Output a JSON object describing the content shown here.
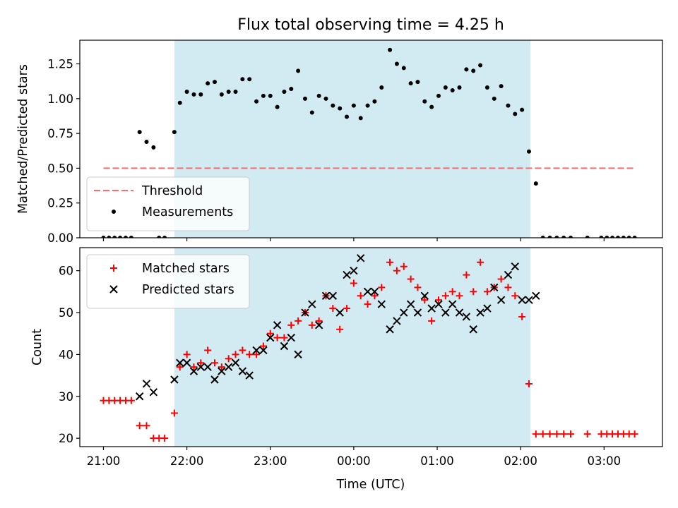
{
  "chart_data": [
    {
      "type": "scatter",
      "title": "Flux total observing time = 4.25 h",
      "xlabel": "",
      "ylabel": "Matched/Predicted stars",
      "xlim": [
        "20:43",
        "03:42"
      ],
      "ylim": [
        0,
        1.42
      ],
      "x_ticks": [
        "21:00",
        "22:00",
        "23:00",
        "00:00",
        "01:00",
        "02:00",
        "03:00"
      ],
      "x_tick_labels_shown": false,
      "y_ticks": [
        "0.00",
        "0.25",
        "0.50",
        "0.75",
        "1.00",
        "1.25"
      ],
      "shaded_interval": [
        "21:51",
        "02:07"
      ],
      "shade_color": "#add8e6",
      "legend_position": "lower-left",
      "threshold": {
        "name": "Threshold",
        "value": 0.5,
        "x_range": [
          "21:00",
          "03:22"
        ],
        "color": "#ff6b6b",
        "style": "dashed"
      },
      "series": [
        {
          "name": "Measurements",
          "color": "#000000",
          "marker": "dot",
          "points": [
            [
              "21:00",
              0
            ],
            [
              "21:04",
              0
            ],
            [
              "21:08",
              0
            ],
            [
              "21:12",
              0
            ],
            [
              "21:16",
              0
            ],
            [
              "21:20",
              0
            ],
            [
              "21:26",
              0.76
            ],
            [
              "21:31",
              0.69
            ],
            [
              "21:36",
              0.65
            ],
            [
              "21:40",
              0
            ],
            [
              "21:44",
              0
            ],
            [
              "21:51",
              0.76
            ],
            [
              "21:55",
              0.97
            ],
            [
              "22:00",
              1.05
            ],
            [
              "22:05",
              1.03
            ],
            [
              "22:10",
              1.03
            ],
            [
              "22:15",
              1.11
            ],
            [
              "22:20",
              1.12
            ],
            [
              "22:25",
              1.03
            ],
            [
              "22:30",
              1.05
            ],
            [
              "22:35",
              1.05
            ],
            [
              "22:40",
              1.14
            ],
            [
              "22:45",
              1.14
            ],
            [
              "22:50",
              0.98
            ],
            [
              "22:55",
              1.02
            ],
            [
              "23:00",
              1.02
            ],
            [
              "23:05",
              0.94
            ],
            [
              "23:10",
              1.05
            ],
            [
              "23:15",
              1.07
            ],
            [
              "23:20",
              1.2
            ],
            [
              "23:25",
              1.0
            ],
            [
              "23:30",
              0.9
            ],
            [
              "23:35",
              1.02
            ],
            [
              "23:40",
              1.0
            ],
            [
              "23:45",
              0.95
            ],
            [
              "23:50",
              0.93
            ],
            [
              "23:55",
              0.87
            ],
            [
              "00:00",
              0.95
            ],
            [
              "00:05",
              0.86
            ],
            [
              "00:10",
              0.95
            ],
            [
              "00:15",
              0.98
            ],
            [
              "00:20",
              1.08
            ],
            [
              "00:26",
              1.35
            ],
            [
              "00:31",
              1.25
            ],
            [
              "00:36",
              1.22
            ],
            [
              "00:41",
              1.11
            ],
            [
              "00:46",
              1.12
            ],
            [
              "00:51",
              0.98
            ],
            [
              "00:56",
              0.94
            ],
            [
              "01:01",
              1.02
            ],
            [
              "01:06",
              1.08
            ],
            [
              "01:11",
              1.06
            ],
            [
              "01:16",
              1.08
            ],
            [
              "01:21",
              1.21
            ],
            [
              "01:26",
              1.2
            ],
            [
              "01:31",
              1.24
            ],
            [
              "01:36",
              1.08
            ],
            [
              "01:41",
              1.0
            ],
            [
              "01:46",
              1.09
            ],
            [
              "01:51",
              0.95
            ],
            [
              "01:56",
              0.89
            ],
            [
              "02:01",
              0.92
            ],
            [
              "02:06",
              0.62
            ],
            [
              "02:11",
              0.39
            ],
            [
              "02:16",
              0
            ],
            [
              "02:21",
              0
            ],
            [
              "02:26",
              0
            ],
            [
              "02:31",
              0
            ],
            [
              "02:36",
              0
            ],
            [
              "02:48",
              0
            ],
            [
              "02:58",
              0
            ],
            [
              "03:02",
              0
            ],
            [
              "03:06",
              0
            ],
            [
              "03:10",
              0
            ],
            [
              "03:14",
              0
            ],
            [
              "03:18",
              0
            ],
            [
              "03:22",
              0
            ]
          ]
        }
      ]
    },
    {
      "type": "scatter",
      "title": "",
      "xlabel": "Time (UTC)",
      "ylabel": "Count",
      "xlim": [
        "20:43",
        "03:42"
      ],
      "ylim": [
        18,
        65.5
      ],
      "x_ticks": [
        "21:00",
        "22:00",
        "23:00",
        "00:00",
        "01:00",
        "02:00",
        "03:00"
      ],
      "y_ticks": [
        "20",
        "30",
        "40",
        "50",
        "60"
      ],
      "shaded_interval": [
        "21:51",
        "02:07"
      ],
      "shade_color": "#add8e6",
      "legend_position": "upper-left",
      "series": [
        {
          "name": "Matched stars",
          "color": "#ff0000",
          "marker": "plus",
          "points": [
            [
              "21:00",
              29
            ],
            [
              "21:04",
              29
            ],
            [
              "21:08",
              29
            ],
            [
              "21:12",
              29
            ],
            [
              "21:16",
              29
            ],
            [
              "21:20",
              29
            ],
            [
              "21:26",
              23
            ],
            [
              "21:31",
              23
            ],
            [
              "21:36",
              20
            ],
            [
              "21:40",
              20
            ],
            [
              "21:44",
              20
            ],
            [
              "21:51",
              26
            ],
            [
              "21:55",
              37
            ],
            [
              "22:00",
              40
            ],
            [
              "22:05",
              37
            ],
            [
              "22:10",
              38
            ],
            [
              "22:15",
              41
            ],
            [
              "22:20",
              38
            ],
            [
              "22:25",
              37
            ],
            [
              "22:30",
              39
            ],
            [
              "22:35",
              40
            ],
            [
              "22:40",
              41
            ],
            [
              "22:45",
              40
            ],
            [
              "22:50",
              40
            ],
            [
              "22:55",
              42
            ],
            [
              "23:00",
              45
            ],
            [
              "23:05",
              44
            ],
            [
              "23:10",
              44
            ],
            [
              "23:15",
              47
            ],
            [
              "23:20",
              48
            ],
            [
              "23:25",
              50
            ],
            [
              "23:30",
              47
            ],
            [
              "23:35",
              48
            ],
            [
              "23:40",
              54
            ],
            [
              "23:45",
              51
            ],
            [
              "23:50",
              46
            ],
            [
              "23:55",
              51
            ],
            [
              "00:00",
              57
            ],
            [
              "00:05",
              54
            ],
            [
              "00:10",
              52
            ],
            [
              "00:15",
              54
            ],
            [
              "00:20",
              56
            ],
            [
              "00:26",
              62
            ],
            [
              "00:31",
              60
            ],
            [
              "00:36",
              61
            ],
            [
              "00:41",
              58
            ],
            [
              "00:46",
              56
            ],
            [
              "00:51",
              53
            ],
            [
              "00:56",
              48
            ],
            [
              "01:01",
              53
            ],
            [
              "01:06",
              54
            ],
            [
              "01:11",
              55
            ],
            [
              "01:16",
              54
            ],
            [
              "01:21",
              59
            ],
            [
              "01:26",
              55
            ],
            [
              "01:31",
              62
            ],
            [
              "01:36",
              55
            ],
            [
              "01:41",
              56
            ],
            [
              "01:46",
              58
            ],
            [
              "01:51",
              56
            ],
            [
              "01:56",
              54
            ],
            [
              "02:01",
              49
            ],
            [
              "02:06",
              33
            ],
            [
              "02:11",
              21
            ],
            [
              "02:16",
              21
            ],
            [
              "02:21",
              21
            ],
            [
              "02:26",
              21
            ],
            [
              "02:31",
              21
            ],
            [
              "02:36",
              21
            ],
            [
              "02:48",
              21
            ],
            [
              "02:58",
              21
            ],
            [
              "03:02",
              21
            ],
            [
              "03:06",
              21
            ],
            [
              "03:10",
              21
            ],
            [
              "03:14",
              21
            ],
            [
              "03:18",
              21
            ],
            [
              "03:22",
              21
            ]
          ]
        },
        {
          "name": "Predicted stars",
          "color": "#000000",
          "marker": "x",
          "points": [
            [
              "21:26",
              30
            ],
            [
              "21:31",
              33
            ],
            [
              "21:36",
              31
            ],
            [
              "21:51",
              34
            ],
            [
              "21:55",
              38
            ],
            [
              "22:00",
              38
            ],
            [
              "22:05",
              36
            ],
            [
              "22:10",
              37
            ],
            [
              "22:15",
              37
            ],
            [
              "22:20",
              34
            ],
            [
              "22:25",
              36
            ],
            [
              "22:30",
              37
            ],
            [
              "22:35",
              38
            ],
            [
              "22:40",
              36
            ],
            [
              "22:45",
              35
            ],
            [
              "22:50",
              41
            ],
            [
              "22:55",
              41
            ],
            [
              "23:00",
              44
            ],
            [
              "23:05",
              47
            ],
            [
              "23:10",
              42
            ],
            [
              "23:15",
              44
            ],
            [
              "23:20",
              40
            ],
            [
              "23:25",
              50
            ],
            [
              "23:30",
              52
            ],
            [
              "23:35",
              47
            ],
            [
              "23:40",
              54
            ],
            [
              "23:45",
              54
            ],
            [
              "23:50",
              50
            ],
            [
              "23:55",
              59
            ],
            [
              "00:00",
              60
            ],
            [
              "00:05",
              63
            ],
            [
              "00:10",
              55
            ],
            [
              "00:15",
              55
            ],
            [
              "00:20",
              52
            ],
            [
              "00:26",
              46
            ],
            [
              "00:31",
              48
            ],
            [
              "00:36",
              50
            ],
            [
              "00:41",
              52
            ],
            [
              "00:46",
              50
            ],
            [
              "00:51",
              54
            ],
            [
              "00:56",
              51
            ],
            [
              "01:01",
              52
            ],
            [
              "01:06",
              50
            ],
            [
              "01:11",
              52
            ],
            [
              "01:16",
              50
            ],
            [
              "01:21",
              49
            ],
            [
              "01:26",
              46
            ],
            [
              "01:31",
              50
            ],
            [
              "01:36",
              51
            ],
            [
              "01:41",
              56
            ],
            [
              "01:46",
              53
            ],
            [
              "01:51",
              59
            ],
            [
              "01:56",
              61
            ],
            [
              "02:01",
              53
            ],
            [
              "02:06",
              53
            ],
            [
              "02:11",
              54
            ]
          ]
        }
      ]
    }
  ]
}
